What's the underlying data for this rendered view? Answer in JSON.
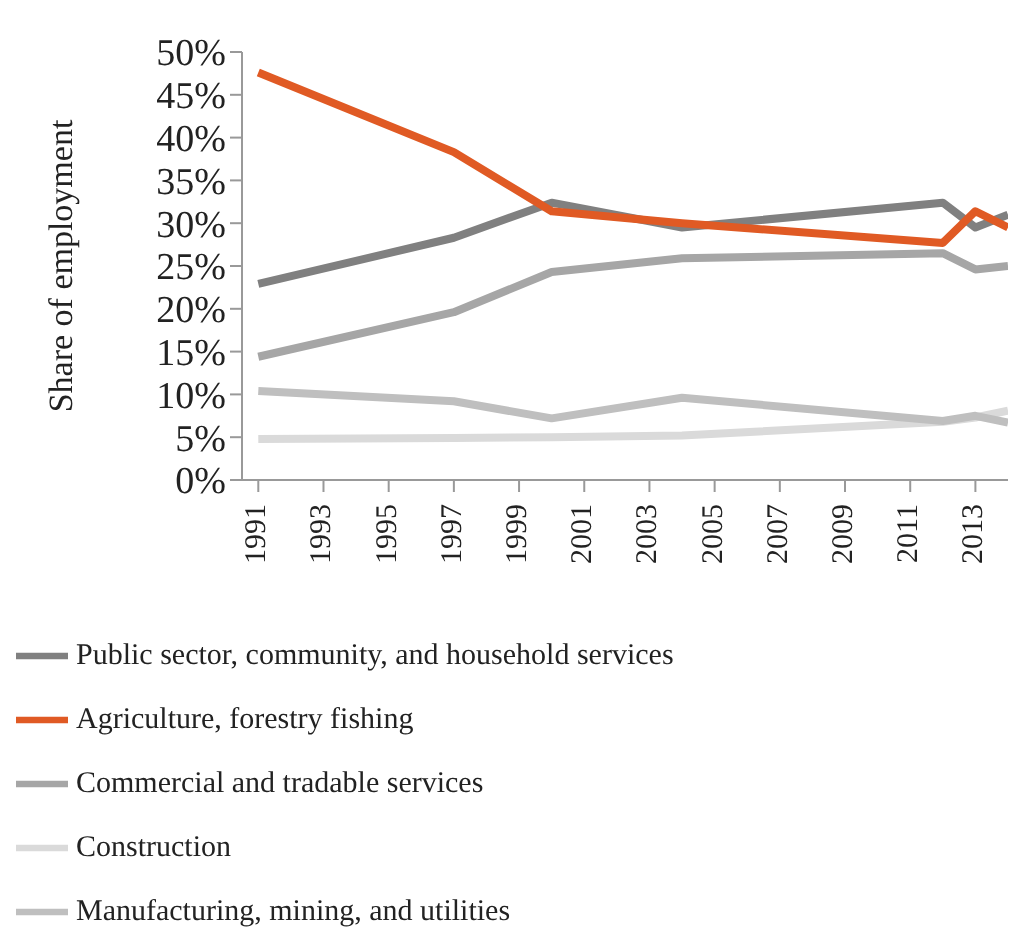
{
  "chart_data": {
    "type": "line",
    "ylabel": "Share of employment",
    "x": [
      1991,
      1997,
      2000,
      2004,
      2012,
      2013,
      2014
    ],
    "xlim": [
      1990.5,
      2014
    ],
    "xticks": [
      1991,
      1993,
      1995,
      1997,
      1999,
      2001,
      2003,
      2005,
      2007,
      2009,
      2011,
      2013
    ],
    "ylim": [
      0,
      50
    ],
    "yticks": [
      {
        "value": 0,
        "label": "0%"
      },
      {
        "value": 5,
        "label": "5%"
      },
      {
        "value": 10,
        "label": "10%"
      },
      {
        "value": 15,
        "label": "15%"
      },
      {
        "value": 20,
        "label": "20%"
      },
      {
        "value": 25,
        "label": "25%"
      },
      {
        "value": 30,
        "label": "30%"
      },
      {
        "value": 35,
        "label": "35%"
      },
      {
        "value": 40,
        "label": "40%"
      },
      {
        "value": 45,
        "label": "45%"
      },
      {
        "value": 50,
        "label": "50%"
      }
    ],
    "grid": false,
    "legend": "bottom",
    "marker": "none",
    "line_style": "solid",
    "series": [
      {
        "name": "Public sector, community, and household services",
        "color": "#808080",
        "values": [
          22.9,
          28.3,
          32.4,
          29.5,
          32.4,
          29.5,
          31
        ]
      },
      {
        "name": "Agriculture, forestry fishing",
        "color": "#e05a24",
        "values": [
          47.6,
          38.3,
          31.4,
          30,
          27.7,
          31.4,
          29.5
        ]
      },
      {
        "name": "Commercial and tradable services",
        "color": "#a6a6a6",
        "values": [
          14.4,
          19.6,
          24.3,
          25.9,
          26.5,
          24.6,
          25
        ]
      },
      {
        "name": "Construction",
        "color": "#dadada",
        "values": [
          4.8,
          4.9,
          5,
          5.2,
          6.8,
          7.3,
          8.1
        ]
      },
      {
        "name": "Manufacturing, mining, and utilities",
        "color": "#bfbfbf",
        "values": [
          10.4,
          9.2,
          7.2,
          9.6,
          6.9,
          7.5,
          6.7
        ]
      }
    ]
  }
}
